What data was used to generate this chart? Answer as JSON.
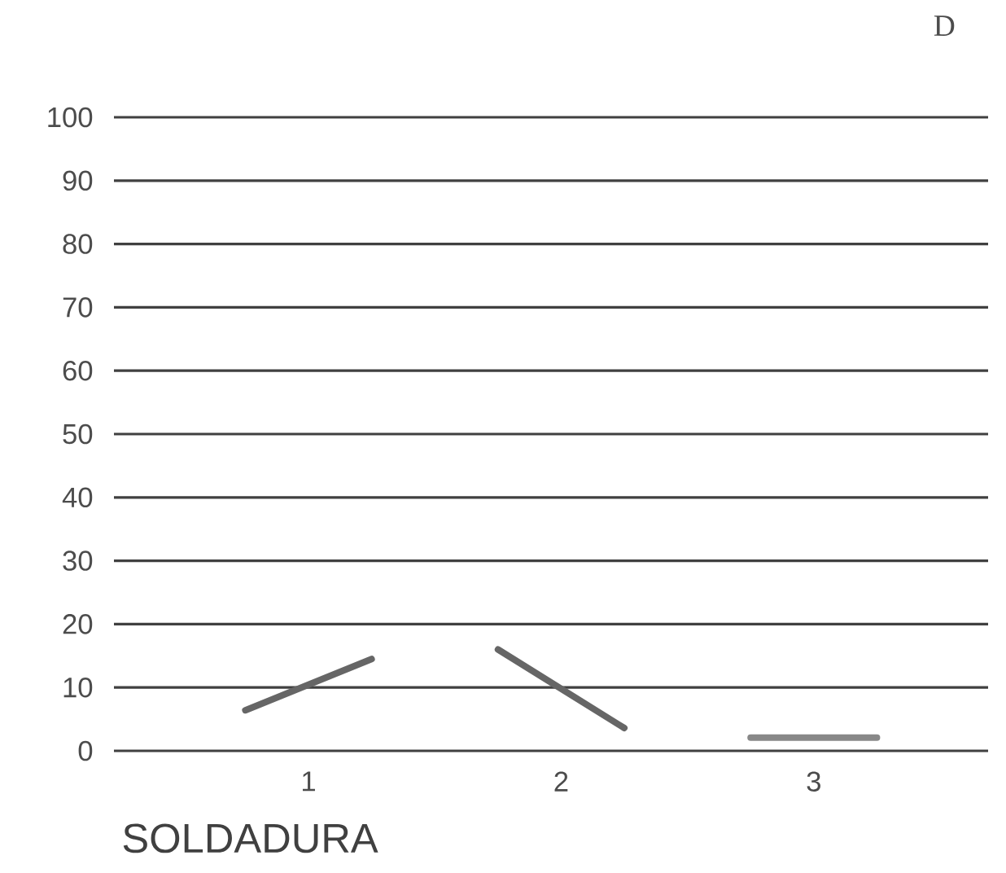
{
  "chart_data": {
    "type": "line",
    "title": "D",
    "xlabel": "SOLDADURA",
    "xlim": [
      0.23,
      3.69
    ],
    "xticks": [
      1,
      2,
      3
    ],
    "ylim": [
      0,
      100
    ],
    "yticks": [
      0,
      10,
      20,
      30,
      40,
      50,
      60,
      70,
      80,
      90,
      100
    ],
    "grid": "y",
    "line_style": "solid",
    "series": [
      {
        "color": "#666666",
        "x": [
          0.75,
          1.25
        ],
        "values": [
          6.4,
          14.5
        ]
      },
      {
        "color": "#666666",
        "x": [
          1.75,
          2.25
        ],
        "values": [
          16,
          3.6
        ]
      },
      {
        "color": "#888888",
        "x": [
          2.75,
          3.25
        ],
        "values": [
          2.1,
          2.1
        ]
      }
    ]
  }
}
